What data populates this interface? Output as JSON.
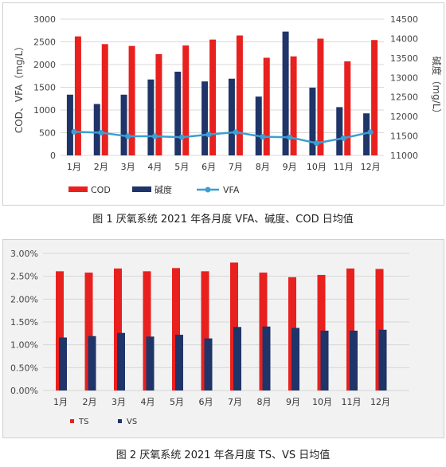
{
  "captions": {
    "fig1": "图 1   厌氧系统 2021 年各月度 VFA、碱度、COD 日均值",
    "fig2": "图 2   厌氧系统 2021 年各月度 TS、VS 日均值"
  },
  "chart_data": [
    {
      "type": "bar",
      "categories": [
        "1月",
        "2月",
        "3月",
        "4月",
        "5月",
        "6月",
        "7月",
        "8月",
        "9月",
        "10月",
        "11月",
        "12月"
      ],
      "ylabel": "COD、VFA（mg/L）",
      "y2label": "碱度（mg/L）",
      "ylim": [
        0,
        3000
      ],
      "yticks": [
        "0",
        "500",
        "1000",
        "1500",
        "2000",
        "2500",
        "3000"
      ],
      "y2lim": [
        11000,
        14500
      ],
      "y2ticks": [
        "11000",
        "11500",
        "12000",
        "12500",
        "13000",
        "13500",
        "14000",
        "14500"
      ],
      "grid": true,
      "legend_position": "bottom-left",
      "series": [
        {
          "name": "COD",
          "kind": "bar",
          "axis": "left",
          "color": "#e8211f",
          "values": [
            2620,
            2450,
            2410,
            2230,
            2420,
            2550,
            2640,
            2150,
            2180,
            2570,
            2070,
            2540
          ]
        },
        {
          "name": "碱度",
          "kind": "bar",
          "axis": "right",
          "color": "#1f3468",
          "values": [
            12560,
            12320,
            12560,
            12950,
            13150,
            12900,
            12970,
            12510,
            14180,
            12740,
            12240,
            12080
          ]
        },
        {
          "name": "VFA",
          "kind": "line",
          "axis": "left",
          "color": "#3c9fd3",
          "values": [
            520,
            500,
            420,
            420,
            400,
            460,
            510,
            410,
            400,
            270,
            380,
            510
          ]
        }
      ]
    },
    {
      "type": "bar",
      "categories": [
        "1月",
        "2月",
        "3月",
        "4月",
        "5月",
        "6月",
        "7月",
        "8月",
        "9月",
        "10月",
        "11月",
        "12月"
      ],
      "ylim": [
        0,
        3.0
      ],
      "yticks": [
        "0.00%",
        "0.50%",
        "1.00%",
        "1.50%",
        "2.00%",
        "2.50%",
        "3.00%"
      ],
      "grid": true,
      "legend_position": "bottom-left",
      "series": [
        {
          "name": "TS",
          "color": "#e8211f",
          "values": [
            2.61,
            2.58,
            2.67,
            2.61,
            2.68,
            2.61,
            2.8,
            2.58,
            2.48,
            2.53,
            2.67,
            2.66
          ]
        },
        {
          "name": "VS",
          "color": "#1f3468",
          "values": [
            1.16,
            1.19,
            1.26,
            1.18,
            1.22,
            1.14,
            1.39,
            1.4,
            1.37,
            1.31,
            1.31,
            1.33
          ]
        }
      ]
    }
  ]
}
